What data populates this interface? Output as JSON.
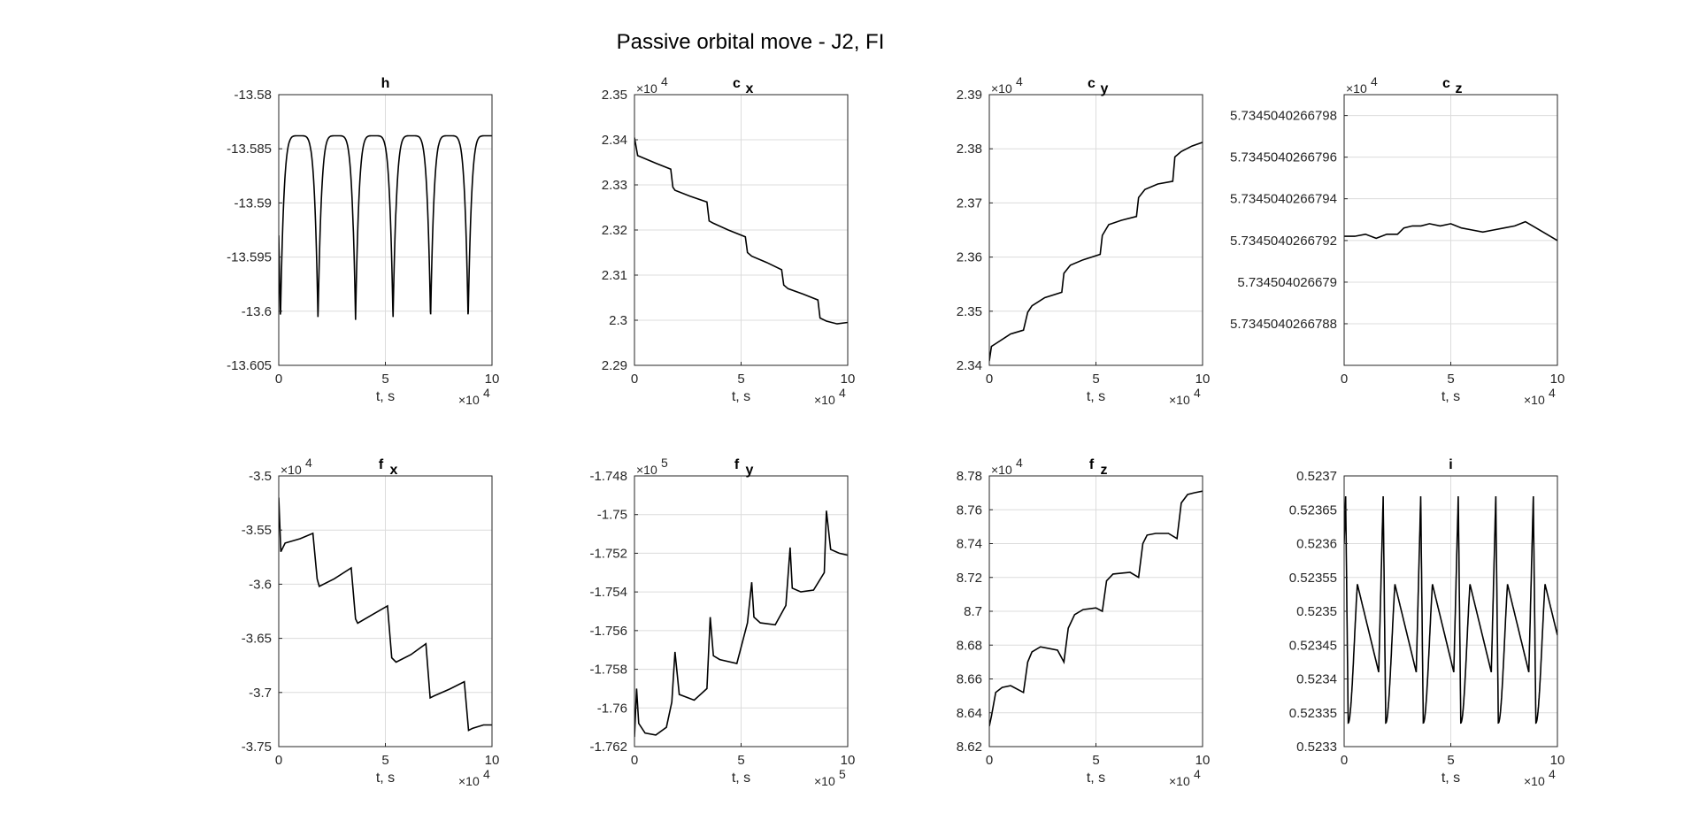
{
  "figure": {
    "title": "Passive orbital move - J2, FI"
  },
  "chart_data": [
    {
      "type": "line",
      "title": "h",
      "title_sub": "",
      "xlabel": "t, s",
      "x_multiplier": "×10",
      "x_exponent": "4",
      "y_multiplier": "",
      "y_exponent": "",
      "xlim": [
        0,
        10
      ],
      "ylim": [
        -13.605,
        -13.58
      ],
      "xticks": [
        "0",
        "5",
        "10"
      ],
      "yticks": [
        "-13.58",
        "-13.585",
        "-13.59",
        "-13.595",
        "-13.6",
        "-13.605"
      ],
      "grid": true,
      "series": [
        {
          "color": "#000000",
          "x": [
            0.0,
            0.08,
            0.3,
            0.6,
            1.0,
            1.5,
            2.0,
            2.5,
            3.0,
            3.5,
            3.7,
            3.9,
            4.2,
            4.5,
            5.0,
            5.5,
            6.0,
            6.5,
            7.2,
            7.7,
            8.2,
            8.7,
            9.2,
            9.7,
            10.0
          ],
          "y": [
            -13.593,
            -13.6008,
            -13.588,
            -13.5845,
            -13.5838,
            -13.5838,
            -13.5838,
            -13.5838,
            -13.5838,
            -13.5838,
            -13.5838,
            -13.5838,
            -13.5838,
            -13.5838,
            -13.5838,
            -13.5838,
            -13.5838,
            -13.5838,
            -13.5838,
            -13.5838,
            -13.5838,
            -13.5838,
            -13.5838,
            -13.5838,
            -13.5838
          ]
        }
      ],
      "dips": [
        0.08,
        1.84,
        3.6,
        5.36,
        7.12,
        8.88
      ]
    },
    {
      "type": "line",
      "title": "c",
      "title_sub": "x",
      "xlabel": "t, s",
      "x_multiplier": "×10",
      "x_exponent": "4",
      "y_multiplier": "×10",
      "y_exponent": "4",
      "xlim": [
        0,
        10
      ],
      "ylim": [
        2.29,
        2.35
      ],
      "xticks": [
        "0",
        "5",
        "10"
      ],
      "yticks": [
        "2.35",
        "2.34",
        "2.33",
        "2.32",
        "2.31",
        "2.3",
        "2.29"
      ],
      "grid": true,
      "series": [
        {
          "color": "#000000",
          "x": [
            0.0,
            0.15,
            0.3,
            1.0,
            1.7,
            1.8,
            1.9,
            2.6,
            3.4,
            3.5,
            3.7,
            4.4,
            5.2,
            5.3,
            5.5,
            6.2,
            6.9,
            7.0,
            7.2,
            7.9,
            8.6,
            8.7,
            9.0,
            9.5,
            10.0
          ],
          "y": [
            2.3405,
            2.3365,
            2.3362,
            2.3348,
            2.3335,
            2.3295,
            2.3288,
            2.3275,
            2.3262,
            2.322,
            2.3215,
            2.32,
            2.3185,
            2.315,
            2.3142,
            2.3128,
            2.3112,
            2.3078,
            2.307,
            2.3058,
            2.3045,
            2.3005,
            2.2998,
            2.2992,
            2.2995
          ]
        }
      ]
    },
    {
      "type": "line",
      "title": "c",
      "title_sub": "y",
      "xlabel": "t, s",
      "x_multiplier": "×10",
      "x_exponent": "4",
      "y_multiplier": "×10",
      "y_exponent": "4",
      "xlim": [
        0,
        10
      ],
      "ylim": [
        2.34,
        2.39
      ],
      "xticks": [
        "0",
        "5",
        "10"
      ],
      "yticks": [
        "2.39",
        "2.38",
        "2.37",
        "2.36",
        "2.35",
        "2.34"
      ],
      "grid": true,
      "series": [
        {
          "color": "#000000",
          "x": [
            0.0,
            0.1,
            0.3,
            1.0,
            1.6,
            1.8,
            2.0,
            2.6,
            3.4,
            3.5,
            3.8,
            4.4,
            5.2,
            5.3,
            5.6,
            6.2,
            6.9,
            7.0,
            7.3,
            7.9,
            8.6,
            8.7,
            9.0,
            9.5,
            10.0
          ],
          "y": [
            2.3408,
            2.3435,
            2.344,
            2.3458,
            2.3465,
            2.3498,
            2.351,
            2.3525,
            2.3535,
            2.357,
            2.3585,
            2.3595,
            2.3605,
            2.364,
            2.366,
            2.3668,
            2.3675,
            2.371,
            2.3725,
            2.3735,
            2.374,
            2.3785,
            2.3795,
            2.3805,
            2.3812
          ]
        }
      ]
    },
    {
      "type": "line",
      "title": "c",
      "title_sub": "z",
      "xlabel": "t, s",
      "x_multiplier": "×10",
      "x_exponent": "4",
      "y_multiplier": "×10",
      "y_exponent": "4",
      "xlim": [
        0,
        10
      ],
      "ylim": [
        5.7345040266786,
        5.7345040266799
      ],
      "xticks": [
        "0",
        "5",
        "10"
      ],
      "yticks": [
        "5.7345040266798",
        "5.7345040266796",
        "5.7345040266794",
        "5.7345040266792",
        "5.734504026679",
        "5.7345040266788"
      ],
      "ytick_values": [
        5.7345040266798,
        5.7345040266796,
        5.7345040266794,
        5.7345040266792,
        5.734504026679,
        5.7345040266788
      ],
      "grid": true,
      "series": [
        {
          "color": "#000000",
          "x": [
            0.0,
            0.5,
            1.0,
            1.5,
            2.0,
            2.5,
            2.8,
            3.2,
            3.6,
            4.0,
            4.5,
            5.0,
            5.5,
            6.0,
            6.5,
            7.0,
            7.5,
            8.0,
            8.5,
            9.0,
            9.5,
            10.0
          ],
          "y": [
            5.73450402667922,
            5.73450402667922,
            5.73450402667923,
            5.73450402667921,
            5.73450402667923,
            5.73450402667923,
            5.73450402667926,
            5.73450402667927,
            5.73450402667927,
            5.73450402667928,
            5.73450402667927,
            5.73450402667928,
            5.73450402667926,
            5.73450402667925,
            5.73450402667924,
            5.73450402667925,
            5.73450402667926,
            5.73450402667927,
            5.73450402667929,
            5.73450402667926,
            5.73450402667923,
            5.7345040266792
          ]
        }
      ]
    },
    {
      "type": "line",
      "title": "f",
      "title_sub": "x",
      "xlabel": "t, s",
      "x_multiplier": "×10",
      "x_exponent": "4",
      "y_multiplier": "×10",
      "y_exponent": "4",
      "xlim": [
        0,
        10
      ],
      "ylim": [
        -3.75,
        -3.5
      ],
      "xticks": [
        "0",
        "5",
        "10"
      ],
      "yticks": [
        "-3.5",
        "-3.55",
        "-3.6",
        "-3.65",
        "-3.7",
        "-3.75"
      ],
      "grid": true,
      "series": [
        {
          "color": "#000000",
          "x": [
            0.0,
            0.1,
            0.3,
            1.0,
            1.6,
            1.8,
            1.9,
            2.6,
            3.4,
            3.6,
            3.7,
            4.4,
            5.1,
            5.3,
            5.5,
            6.2,
            6.9,
            7.1,
            7.3,
            8.0,
            8.7,
            8.9,
            9.1,
            9.6,
            10.0
          ],
          "y": [
            -3.52,
            -3.57,
            -3.562,
            -3.558,
            -3.553,
            -3.595,
            -3.602,
            -3.595,
            -3.585,
            -3.632,
            -3.636,
            -3.628,
            -3.62,
            -3.668,
            -3.672,
            -3.665,
            -3.655,
            -3.705,
            -3.703,
            -3.697,
            -3.69,
            -3.735,
            -3.733,
            -3.73,
            -3.73
          ]
        }
      ]
    },
    {
      "type": "line",
      "title": "f",
      "title_sub": "y",
      "xlabel": "t, s",
      "x_multiplier": "×10",
      "x_exponent": "5",
      "y_multiplier": "×10",
      "y_exponent": "5",
      "xlim": [
        0,
        10
      ],
      "ylim": [
        -1.762,
        -1.748
      ],
      "xticks": [
        "0",
        "5",
        "10"
      ],
      "yticks": [
        "-1.748",
        "-1.75",
        "-1.752",
        "-1.754",
        "-1.756",
        "-1.758",
        "-1.76",
        "-1.762"
      ],
      "grid": true,
      "series": [
        {
          "color": "#000000",
          "x": [
            0.0,
            0.1,
            0.2,
            0.5,
            1.0,
            1.5,
            1.75,
            1.9,
            2.1,
            2.8,
            3.4,
            3.55,
            3.7,
            4.0,
            4.8,
            5.3,
            5.5,
            5.6,
            5.9,
            6.6,
            7.1,
            7.3,
            7.4,
            7.8,
            8.4,
            8.9,
            9.0,
            9.2,
            9.6,
            10.0
          ],
          "y": [
            -1.7615,
            -1.759,
            -1.7608,
            -1.7613,
            -1.7614,
            -1.761,
            -1.7597,
            -1.7571,
            -1.7593,
            -1.7596,
            -1.759,
            -1.7553,
            -1.7573,
            -1.7575,
            -1.7577,
            -1.7556,
            -1.7535,
            -1.7553,
            -1.7556,
            -1.7557,
            -1.7547,
            -1.7517,
            -1.7538,
            -1.754,
            -1.7539,
            -1.753,
            -1.7498,
            -1.7518,
            -1.752,
            -1.7521
          ]
        }
      ]
    },
    {
      "type": "line",
      "title": "f",
      "title_sub": "z",
      "xlabel": "t, s",
      "x_multiplier": "×10",
      "x_exponent": "4",
      "y_multiplier": "×10",
      "y_exponent": "4",
      "xlim": [
        0,
        10
      ],
      "ylim": [
        8.62,
        8.78
      ],
      "xticks": [
        "0",
        "5",
        "10"
      ],
      "yticks": [
        "8.78",
        "8.76",
        "8.74",
        "8.72",
        "8.7",
        "8.68",
        "8.66",
        "8.64",
        "8.62"
      ],
      "grid": true,
      "series": [
        {
          "color": "#000000",
          "x": [
            0.0,
            0.1,
            0.3,
            0.6,
            1.0,
            1.6,
            1.8,
            2.0,
            2.4,
            3.2,
            3.5,
            3.7,
            4.0,
            4.4,
            5.0,
            5.3,
            5.5,
            5.8,
            6.6,
            7.0,
            7.2,
            7.4,
            7.8,
            8.4,
            8.8,
            9.0,
            9.3,
            9.6,
            10.0
          ],
          "y": [
            8.632,
            8.638,
            8.652,
            8.655,
            8.656,
            8.652,
            8.67,
            8.676,
            8.679,
            8.677,
            8.67,
            8.69,
            8.698,
            8.701,
            8.702,
            8.7,
            8.718,
            8.722,
            8.723,
            8.72,
            8.74,
            8.745,
            8.746,
            8.746,
            8.743,
            8.764,
            8.769,
            8.77,
            8.771
          ]
        }
      ]
    },
    {
      "type": "line",
      "title": "i",
      "title_sub": "",
      "xlabel": "t, s",
      "x_multiplier": "×10",
      "x_exponent": "4",
      "y_multiplier": "",
      "y_exponent": "",
      "xlim": [
        0,
        10
      ],
      "ylim": [
        0.5233,
        0.5237
      ],
      "xticks": [
        "0",
        "5",
        "10"
      ],
      "yticks": [
        "0.5237",
        "0.52365",
        "0.5236",
        "0.52355",
        "0.5235",
        "0.52345",
        "0.5234",
        "0.52335",
        "0.5233"
      ],
      "grid": true,
      "peaks": [
        0.07,
        1.84,
        3.6,
        5.36,
        7.12,
        8.88
      ],
      "troughs": [
        0.25,
        1.96,
        3.72,
        5.48,
        7.24,
        9.0
      ],
      "series": [
        {
          "color": "#000000",
          "x": [],
          "y": []
        }
      ]
    }
  ]
}
